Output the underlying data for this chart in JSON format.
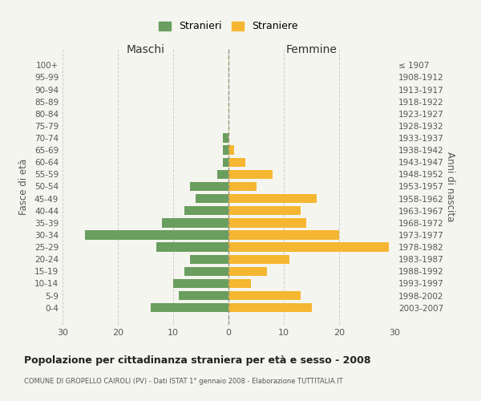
{
  "age_groups": [
    "0-4",
    "5-9",
    "10-14",
    "15-19",
    "20-24",
    "25-29",
    "30-34",
    "35-39",
    "40-44",
    "45-49",
    "50-54",
    "55-59",
    "60-64",
    "65-69",
    "70-74",
    "75-79",
    "80-84",
    "85-89",
    "90-94",
    "95-99",
    "100+"
  ],
  "birth_years": [
    "2003-2007",
    "1998-2002",
    "1993-1997",
    "1988-1992",
    "1983-1987",
    "1978-1982",
    "1973-1977",
    "1968-1972",
    "1963-1967",
    "1958-1962",
    "1953-1957",
    "1948-1952",
    "1943-1947",
    "1938-1942",
    "1933-1937",
    "1928-1932",
    "1923-1927",
    "1918-1922",
    "1913-1917",
    "1908-1912",
    "≤ 1907"
  ],
  "maschi": [
    14,
    9,
    10,
    8,
    7,
    13,
    26,
    12,
    8,
    6,
    7,
    2,
    1,
    1,
    1,
    0,
    0,
    0,
    0,
    0,
    0
  ],
  "femmine": [
    15,
    13,
    4,
    7,
    11,
    29,
    20,
    14,
    13,
    16,
    5,
    8,
    3,
    1,
    0,
    0,
    0,
    0,
    0,
    0,
    0
  ],
  "maschi_color": "#6a9e5e",
  "femmine_color": "#f5b731",
  "background_color": "#f5f5f0",
  "grid_color": "#cccccc",
  "title": "Popolazione per cittadinanza straniera per età e sesso - 2008",
  "subtitle": "COMUNE DI GROPELLO CAIROLI (PV) - Dati ISTAT 1° gennaio 2008 - Elaborazione TUTTITALIA.IT",
  "xlabel_left": "Maschi",
  "xlabel_right": "Femmine",
  "ylabel_left": "Fasce di età",
  "ylabel_right": "Anni di nascita",
  "legend_maschi": "Stranieri",
  "legend_femmine": "Straniere",
  "xlim": 30
}
